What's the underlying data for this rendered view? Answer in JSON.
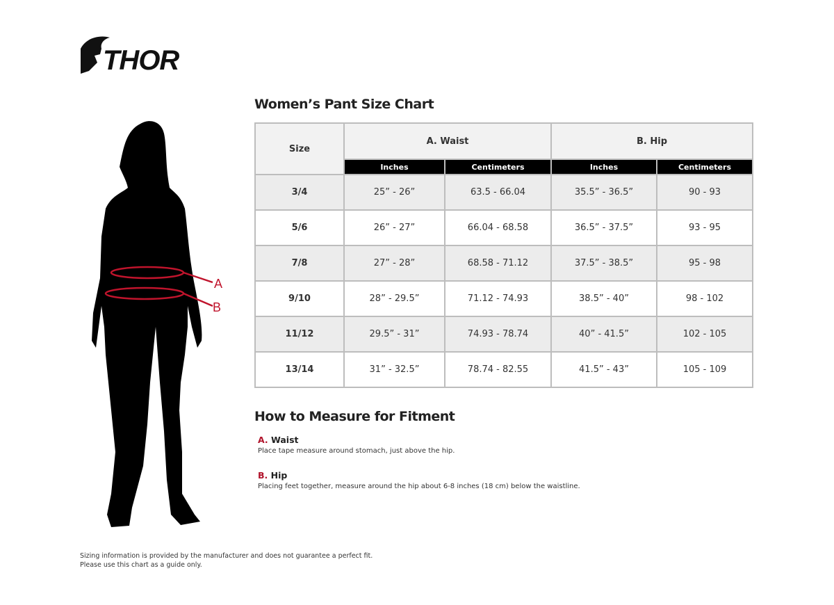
{
  "logo": {
    "text": "THOR"
  },
  "title": "Women’s Pant Size Chart",
  "table": {
    "size_header": "Size",
    "groups": [
      "A. Waist",
      "B. Hip"
    ],
    "sub_headers": [
      "Inches",
      "Centimeters",
      "Inches",
      "Centimeters"
    ],
    "rows": [
      [
        "3/4",
        "25” - 26”",
        "63.5 - 66.04",
        "35.5” - 36.5”",
        "90 - 93"
      ],
      [
        "5/6",
        "26” - 27”",
        "66.04 - 68.58",
        "36.5” - 37.5”",
        "93 - 95"
      ],
      [
        "7/8",
        "27” - 28”",
        "68.58 - 71.12",
        "37.5” - 38.5”",
        "95 - 98"
      ],
      [
        "9/10",
        "28” - 29.5”",
        "71.12 - 74.93",
        "38.5” - 40”",
        "98 - 102"
      ],
      [
        "11/12",
        "29.5” - 31”",
        "74.93 - 78.74",
        "40” - 41.5”",
        "102 - 105"
      ],
      [
        "13/14",
        "31” - 32.5”",
        "78.74 - 82.55",
        "41.5” - 43”",
        "105 - 109"
      ]
    ]
  },
  "figure": {
    "markers": [
      "A",
      "B"
    ],
    "accent": "#c0142c"
  },
  "how": {
    "title": "How to Measure for Fitment",
    "items": [
      {
        "key": "A.",
        "label": "Waist",
        "desc": "Place tape measure around stomach, just above the hip."
      },
      {
        "key": "B.",
        "label": "Hip",
        "desc": "Placing feet together, measure around the hip about 6-8 inches (18 cm) below the waistline."
      }
    ]
  },
  "disclaimer": [
    "Sizing information is provided by the manufacturer and does not guarantee a perfect fit.",
    "Please use this chart as a guide only."
  ]
}
